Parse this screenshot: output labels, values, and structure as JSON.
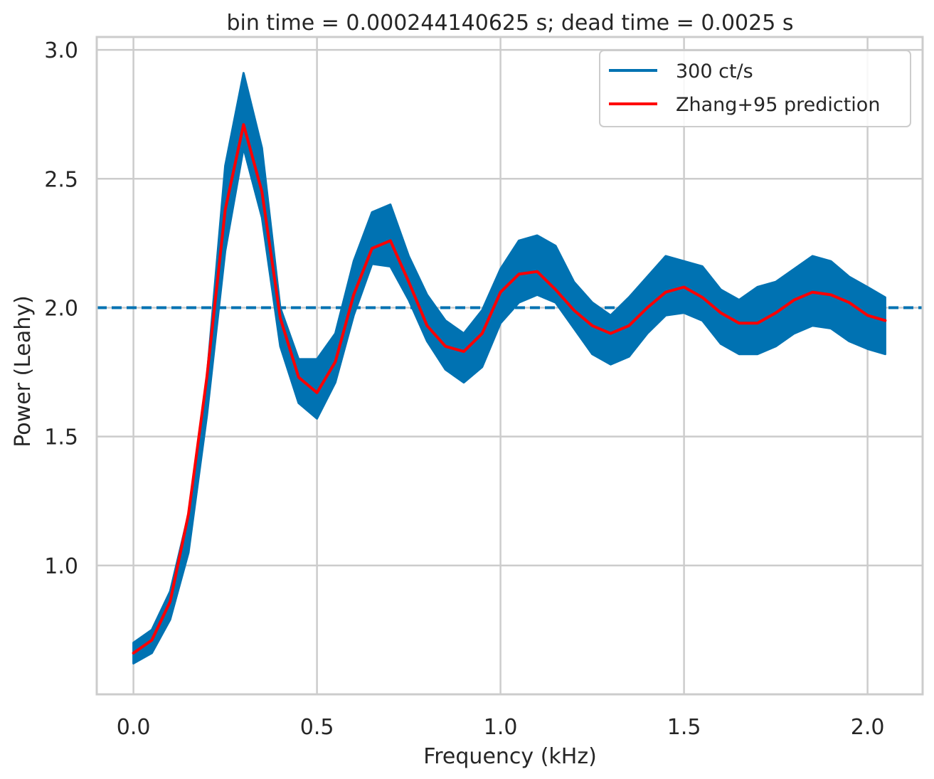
{
  "chart_data": {
    "type": "line",
    "title": "bin time = 0.000244140625 s; dead time = 0.0025 s",
    "xlabel": "Frequency (kHz)",
    "ylabel": "Power (Leahy)",
    "xlim": [
      -0.1,
      2.15
    ],
    "ylim": [
      0.5,
      3.05
    ],
    "xticks": [
      "0.0",
      "0.5",
      "1.0",
      "1.5",
      "2.0"
    ],
    "yticks": [
      "1.0",
      "1.5",
      "2.0",
      "2.5",
      "3.0"
    ],
    "grid": true,
    "legend_position": "top-right",
    "reference_line": {
      "y": 2.0,
      "style": "dashed",
      "color": "#0072b2"
    },
    "series": [
      {
        "name": "300 ct/s",
        "color": "#0072b2",
        "kind": "noisy-band",
        "x": [
          0.0,
          0.05,
          0.1,
          0.15,
          0.2,
          0.25,
          0.3,
          0.35,
          0.4,
          0.45,
          0.5,
          0.55,
          0.6,
          0.65,
          0.7,
          0.75,
          0.8,
          0.85,
          0.9,
          0.95,
          1.0,
          1.05,
          1.1,
          1.15,
          1.2,
          1.25,
          1.3,
          1.35,
          1.4,
          1.45,
          1.5,
          1.55,
          1.6,
          1.65,
          1.7,
          1.75,
          1.8,
          1.85,
          1.9,
          1.95,
          2.0,
          2.048
        ],
        "y_low": [
          0.62,
          0.66,
          0.79,
          1.05,
          1.58,
          2.22,
          2.62,
          2.35,
          1.85,
          1.63,
          1.57,
          1.71,
          1.97,
          2.17,
          2.16,
          2.03,
          1.87,
          1.76,
          1.71,
          1.77,
          1.94,
          2.02,
          2.05,
          2.02,
          1.92,
          1.82,
          1.78,
          1.81,
          1.9,
          1.97,
          1.98,
          1.95,
          1.86,
          1.82,
          1.82,
          1.85,
          1.9,
          1.93,
          1.92,
          1.87,
          1.84,
          1.82
        ],
        "y_high": [
          0.7,
          0.75,
          0.9,
          1.2,
          1.73,
          2.55,
          2.91,
          2.62,
          2.0,
          1.8,
          1.8,
          1.9,
          2.18,
          2.37,
          2.4,
          2.2,
          2.05,
          1.95,
          1.9,
          1.99,
          2.15,
          2.26,
          2.28,
          2.24,
          2.1,
          2.02,
          1.97,
          2.04,
          2.12,
          2.2,
          2.18,
          2.16,
          2.07,
          2.03,
          2.08,
          2.1,
          2.15,
          2.2,
          2.18,
          2.12,
          2.08,
          2.04
        ]
      },
      {
        "name": "Zhang+95 prediction",
        "color": "#ff0000",
        "x": [
          0.0,
          0.05,
          0.1,
          0.15,
          0.2,
          0.25,
          0.3,
          0.35,
          0.4,
          0.45,
          0.5,
          0.55,
          0.6,
          0.65,
          0.7,
          0.75,
          0.8,
          0.85,
          0.9,
          0.95,
          1.0,
          1.05,
          1.1,
          1.15,
          1.2,
          1.25,
          1.3,
          1.35,
          1.4,
          1.45,
          1.5,
          1.55,
          1.6,
          1.65,
          1.7,
          1.75,
          1.8,
          1.85,
          1.9,
          1.95,
          2.0,
          2.048
        ],
        "y": [
          0.66,
          0.71,
          0.86,
          1.2,
          1.73,
          2.38,
          2.71,
          2.45,
          1.96,
          1.73,
          1.67,
          1.79,
          2.05,
          2.23,
          2.26,
          2.1,
          1.93,
          1.85,
          1.83,
          1.9,
          2.06,
          2.13,
          2.14,
          2.07,
          1.99,
          1.93,
          1.9,
          1.93,
          2.0,
          2.06,
          2.08,
          2.04,
          1.98,
          1.94,
          1.94,
          1.98,
          2.03,
          2.06,
          2.05,
          2.02,
          1.97,
          1.95
        ]
      }
    ]
  }
}
